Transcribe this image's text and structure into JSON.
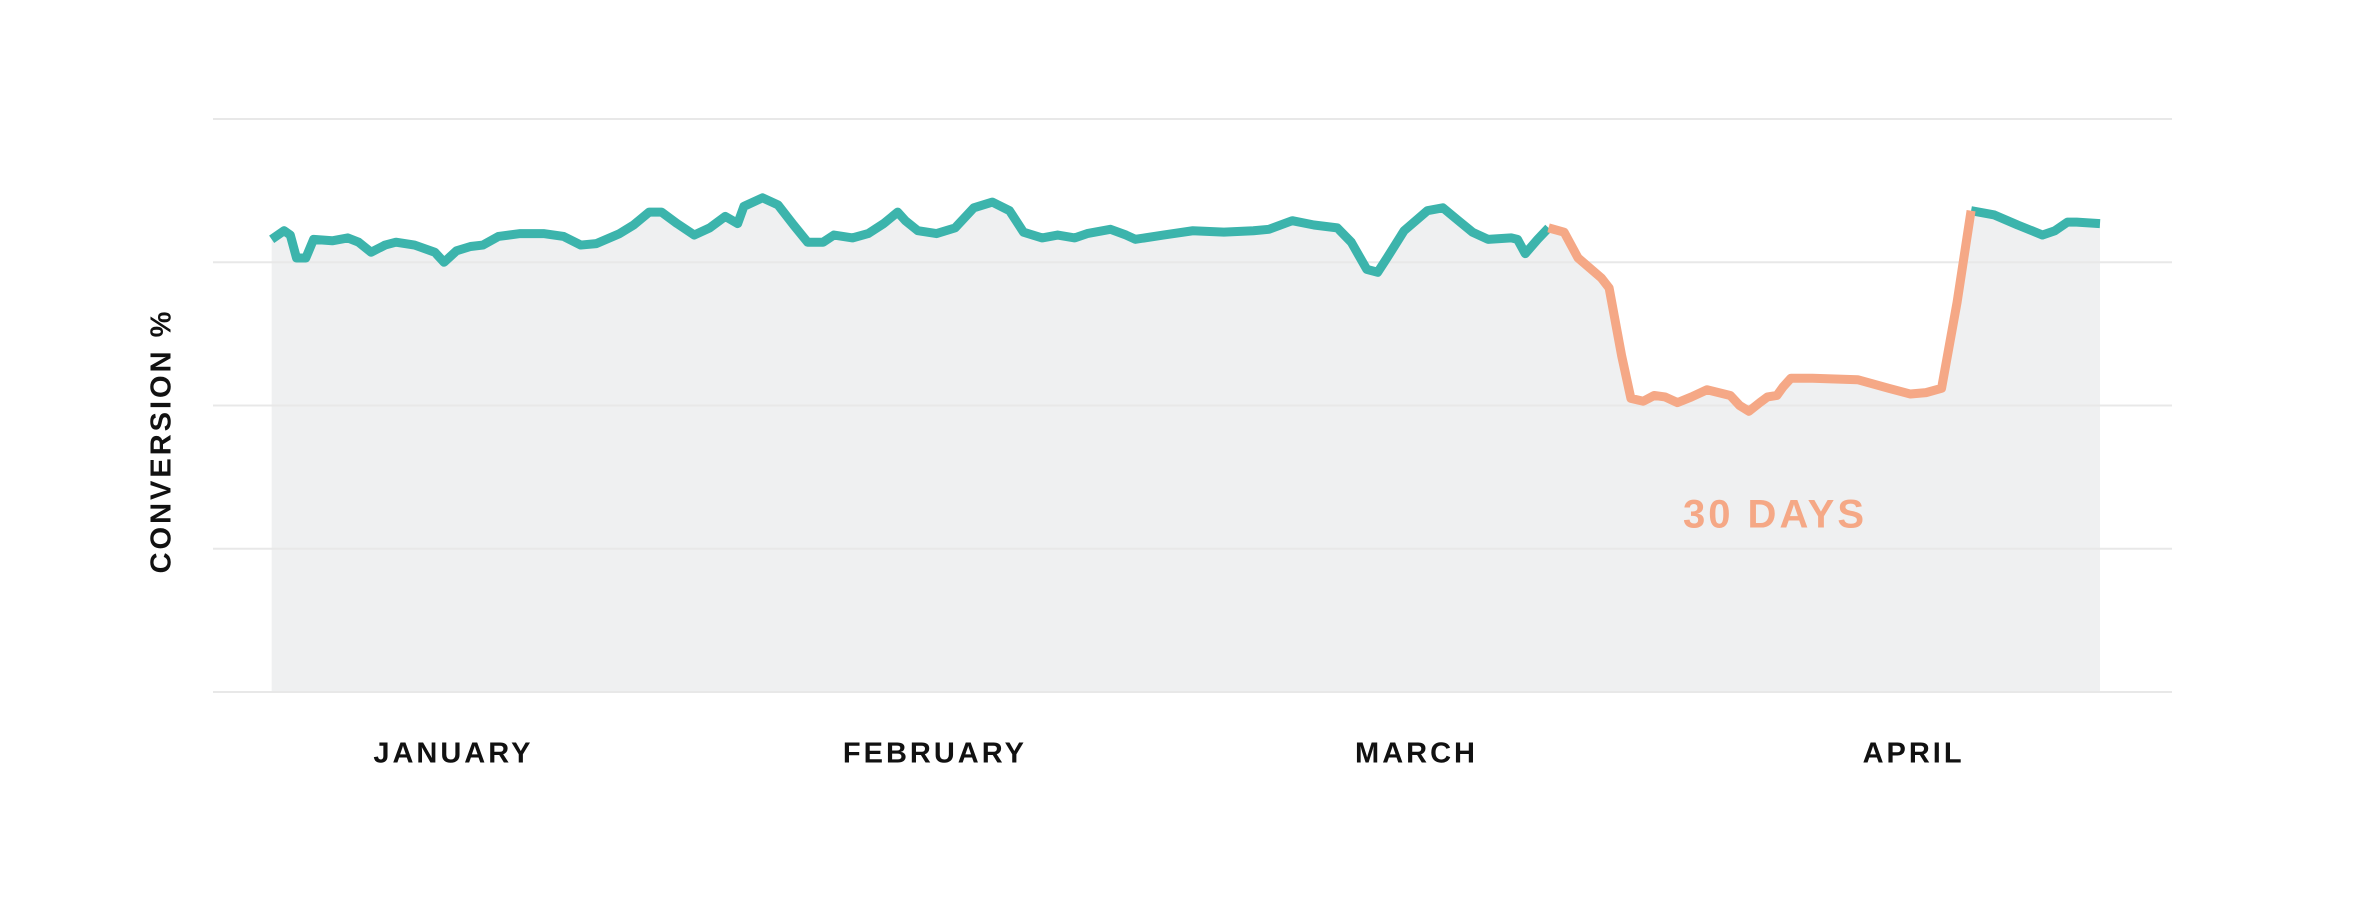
{
  "chart_data": {
    "type": "line",
    "y_label": "CONVERSION %",
    "annotation": "30 DAYS",
    "grid": true,
    "area_color": "#eff0f1",
    "xlim": [
      4,
      122
    ],
    "xticks": [
      {
        "value": 16,
        "label": "JANUARY"
      },
      {
        "value": 47,
        "label": "FEBRUARY"
      },
      {
        "value": 78,
        "label": "MARCH"
      },
      {
        "value": 110,
        "label": "APRIL"
      }
    ],
    "ylim": [
      0,
      4
    ],
    "yticks": [
      0,
      1,
      2,
      3,
      4
    ],
    "x": [
      4.3,
      5.1,
      5.5,
      5.9,
      6.5,
      7.0,
      8.2,
      9.2,
      9.9,
      10.7,
      11.6,
      12.3,
      13.5,
      14.8,
      15.4,
      16.2,
      17.1,
      17.9,
      18.9,
      20.3,
      21.8,
      23.1,
      24.2,
      25.2,
      26.7,
      27.6,
      28.6,
      29.4,
      30.4,
      31.5,
      32.5,
      33.5,
      34.3,
      34.7,
      35.9,
      36.9,
      37.9,
      38.8,
      39.8,
      40.5,
      41.7,
      42.7,
      43.7,
      44.6,
      45.1,
      45.9,
      47.1,
      48.3,
      49.5,
      50.7,
      51.8,
      52.7,
      53.9,
      54.9,
      56.0,
      56.8,
      58.3,
      59.3,
      59.9,
      61.7,
      63.6,
      65.6,
      67.5,
      68.5,
      70.0,
      71.4,
      72.9,
      73.8,
      74.8,
      75.5,
      76.1,
      77.2,
      78.7,
      79.7,
      80.7,
      81.6,
      82.6,
      84.1,
      84.5,
      85.0,
      85.8,
      86.5,
      87.5,
      88.4,
      89.9,
      90.4,
      91.2,
      91.8,
      92.6,
      93.3,
      94.0,
      94.8,
      95.7,
      96.7,
      98.2,
      98.8,
      99.4,
      100.1,
      100.6,
      101.2,
      101.6,
      102.1,
      103.5,
      106.4,
      108.4,
      109.8,
      110.8,
      111.8,
      112.8,
      113.7,
      115.2,
      116.7,
      118.3,
      119.1,
      119.9,
      120.5,
      122.0
    ],
    "series": [
      {
        "color": "#3cb4ac",
        "values": [
          3.16,
          3.22,
          3.19,
          3.03,
          3.03,
          3.16,
          3.15,
          3.17,
          3.14,
          3.07,
          3.12,
          3.14,
          3.12,
          3.07,
          3.0,
          3.08,
          3.11,
          3.12,
          3.18,
          3.2,
          3.2,
          3.18,
          3.12,
          3.13,
          3.2,
          3.26,
          3.35,
          3.35,
          3.27,
          3.19,
          3.24,
          3.32,
          3.27,
          3.39,
          3.45,
          3.4,
          3.26,
          3.14,
          3.14,
          3.19,
          3.17,
          3.2,
          3.27,
          3.35,
          3.29,
          3.22,
          3.2,
          3.24,
          3.38,
          3.42,
          3.36,
          3.21,
          3.17,
          3.19,
          3.17,
          3.2,
          3.23,
          3.19,
          3.16,
          3.19,
          3.22,
          3.21,
          3.22,
          3.23,
          3.29,
          3.26,
          3.24,
          3.14,
          2.95,
          2.93,
          3.03,
          3.22,
          3.36,
          3.38,
          3.29,
          3.21,
          3.16,
          3.17,
          3.16,
          3.06,
          3.16,
          3.24,
          null,
          null,
          null,
          null,
          null,
          null,
          null,
          null,
          null,
          null,
          null,
          null,
          null,
          null,
          null,
          null,
          null,
          null,
          null,
          null,
          null,
          null,
          null,
          null,
          null,
          null,
          null,
          3.36,
          3.33,
          3.26,
          3.19,
          3.22,
          3.28,
          3.28,
          3.27
        ]
      },
      {
        "color": "#f5a886",
        "values": [
          null,
          null,
          null,
          null,
          null,
          null,
          null,
          null,
          null,
          null,
          null,
          null,
          null,
          null,
          null,
          null,
          null,
          null,
          null,
          null,
          null,
          null,
          null,
          null,
          null,
          null,
          null,
          null,
          null,
          null,
          null,
          null,
          null,
          null,
          null,
          null,
          null,
          null,
          null,
          null,
          null,
          null,
          null,
          null,
          null,
          null,
          null,
          null,
          null,
          null,
          null,
          null,
          null,
          null,
          null,
          null,
          null,
          null,
          null,
          null,
          null,
          null,
          null,
          null,
          null,
          null,
          null,
          null,
          null,
          null,
          null,
          null,
          null,
          null,
          null,
          null,
          null,
          null,
          null,
          null,
          null,
          3.24,
          3.21,
          3.03,
          2.89,
          2.82,
          2.35,
          2.05,
          2.03,
          2.07,
          2.06,
          2.02,
          2.06,
          2.11,
          2.07,
          2.0,
          1.96,
          2.02,
          2.06,
          2.07,
          2.13,
          2.19,
          2.19,
          2.18,
          2.12,
          2.08,
          2.09,
          2.12,
          2.72,
          3.36,
          null,
          null,
          null,
          null,
          null,
          null,
          null
        ]
      }
    ]
  }
}
